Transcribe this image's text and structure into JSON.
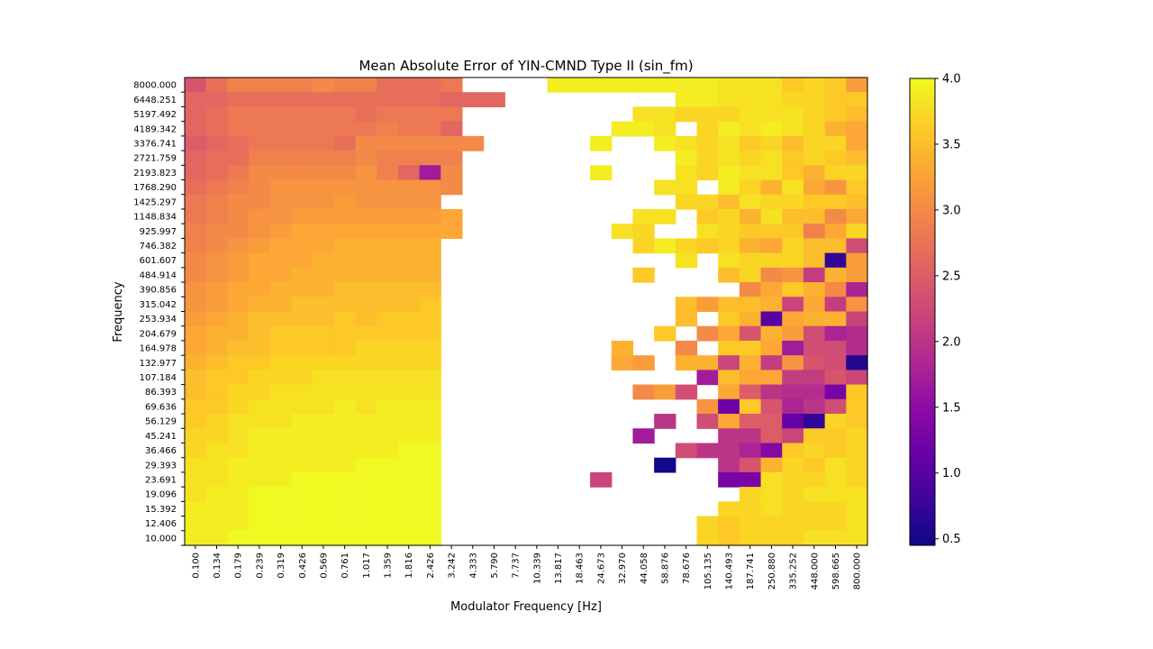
{
  "chart_data": {
    "type": "heatmap",
    "title": "Mean Absolute Error of YIN-CMND Type II  (sin_fm)",
    "xlabel": "Modulator Frequency [Hz]",
    "ylabel": "Frequency",
    "x_ticks": [
      "0.100",
      "0.134",
      "0.179",
      "0.239",
      "0.319",
      "0.426",
      "0.569",
      "0.761",
      "1.017",
      "1.359",
      "1.816",
      "2.426",
      "3.242",
      "4.333",
      "5.790",
      "7.737",
      "10.339",
      "13.817",
      "18.463",
      "24.673",
      "32.970",
      "44.058",
      "58.876",
      "78.676",
      "105.135",
      "140.493",
      "187.741",
      "250.880",
      "335.252",
      "448.000",
      "598.665",
      "800.000"
    ],
    "y_ticks": [
      "10.000",
      "12.406",
      "15.392",
      "19.096",
      "23.691",
      "29.393",
      "36.466",
      "45.241",
      "56.129",
      "69.636",
      "86.393",
      "107.184",
      "132.977",
      "164.978",
      "204.679",
      "253.934",
      "315.042",
      "390.856",
      "484.914",
      "601.607",
      "746.382",
      "925.997",
      "1148.834",
      "1425.297",
      "1768.290",
      "2193.823",
      "2721.759",
      "3376.741",
      "4189.342",
      "5197.492",
      "6448.251",
      "8000.000"
    ],
    "colormap": "plasma",
    "value_range": [
      0.45,
      4.0
    ],
    "colorbar_ticks": [
      "0.5",
      "1.0",
      "1.5",
      "2.0",
      "2.5",
      "3.0",
      "3.5",
      "4.0"
    ],
    "missing_value_note": "null = no data (white cell)",
    "grid_columns": 32,
    "grid_rows": 32,
    "rows_top_to_bottom": [
      [
        2.4,
        2.7,
        2.9,
        2.9,
        2.9,
        2.9,
        3.0,
        2.9,
        2.9,
        2.7,
        2.7,
        2.7,
        2.8,
        null,
        null,
        null,
        null,
        3.9,
        3.9,
        3.9,
        3.9,
        3.9,
        3.9,
        3.9,
        3.9,
        3.8,
        3.8,
        3.8,
        3.6,
        3.7,
        3.6,
        3.2
      ],
      [
        2.6,
        2.6,
        2.7,
        2.7,
        2.7,
        2.7,
        2.7,
        2.7,
        2.7,
        2.7,
        2.7,
        2.7,
        2.6,
        2.6,
        2.6,
        null,
        null,
        null,
        null,
        null,
        null,
        null,
        null,
        3.9,
        3.9,
        3.8,
        3.8,
        3.8,
        3.7,
        3.7,
        3.6,
        3.6
      ],
      [
        2.6,
        2.7,
        2.8,
        2.8,
        2.8,
        2.8,
        2.8,
        2.8,
        2.7,
        2.8,
        2.8,
        2.8,
        2.8,
        null,
        null,
        null,
        null,
        null,
        null,
        null,
        null,
        3.8,
        3.8,
        3.7,
        3.7,
        3.7,
        3.8,
        3.8,
        3.8,
        3.7,
        3.6,
        3.5
      ],
      [
        2.6,
        2.7,
        2.8,
        2.8,
        2.8,
        2.8,
        2.8,
        2.8,
        2.8,
        2.9,
        2.8,
        2.8,
        2.6,
        null,
        null,
        null,
        null,
        null,
        null,
        null,
        3.9,
        3.9,
        3.8,
        null,
        3.7,
        3.9,
        3.8,
        3.9,
        3.8,
        3.7,
        3.4,
        3.3
      ],
      [
        2.5,
        2.6,
        2.7,
        2.8,
        2.8,
        2.8,
        2.8,
        2.7,
        3.0,
        3.0,
        3.0,
        3.0,
        3.0,
        3.0,
        null,
        null,
        null,
        null,
        null,
        3.9,
        null,
        null,
        3.9,
        3.8,
        3.7,
        3.8,
        3.6,
        3.7,
        3.5,
        3.7,
        3.7,
        3.3
      ],
      [
        2.6,
        2.7,
        2.7,
        2.9,
        2.9,
        2.9,
        2.9,
        2.9,
        3.0,
        2.9,
        2.9,
        2.9,
        2.9,
        null,
        null,
        null,
        null,
        null,
        null,
        null,
        null,
        null,
        null,
        3.9,
        3.7,
        3.8,
        3.7,
        3.8,
        3.6,
        3.7,
        3.6,
        3.5
      ],
      [
        2.6,
        2.7,
        2.8,
        3.0,
        3.0,
        3.0,
        3.0,
        3.0,
        3.1,
        2.9,
        2.6,
        1.7,
        3.0,
        null,
        null,
        null,
        null,
        null,
        null,
        3.9,
        null,
        null,
        null,
        3.8,
        3.7,
        3.9,
        3.8,
        3.8,
        3.6,
        3.4,
        3.7,
        3.7
      ],
      [
        2.7,
        2.8,
        2.9,
        3.0,
        3.1,
        3.1,
        3.1,
        3.1,
        3.1,
        3.1,
        3.1,
        3.1,
        3.0,
        null,
        null,
        null,
        null,
        null,
        null,
        null,
        null,
        null,
        3.8,
        3.8,
        null,
        3.9,
        3.7,
        3.4,
        3.8,
        3.3,
        3.1,
        3.6
      ],
      [
        2.8,
        2.9,
        3.0,
        3.0,
        3.1,
        3.1,
        3.1,
        3.2,
        3.1,
        3.1,
        3.1,
        3.1,
        null,
        null,
        null,
        null,
        null,
        null,
        null,
        null,
        null,
        null,
        null,
        3.7,
        3.7,
        3.5,
        3.8,
        3.7,
        3.7,
        3.6,
        3.6,
        3.5
      ],
      [
        2.8,
        2.9,
        3.0,
        3.1,
        3.1,
        3.2,
        3.2,
        3.2,
        3.2,
        3.2,
        3.2,
        3.2,
        3.3,
        null,
        null,
        null,
        null,
        null,
        null,
        null,
        null,
        3.8,
        3.8,
        null,
        3.6,
        3.7,
        3.4,
        3.8,
        3.5,
        3.5,
        3.0,
        3.3
      ],
      [
        2.9,
        3.0,
        3.0,
        3.1,
        3.2,
        3.3,
        3.3,
        3.3,
        3.3,
        3.3,
        3.3,
        3.3,
        3.3,
        null,
        null,
        null,
        null,
        null,
        null,
        null,
        3.8,
        3.7,
        null,
        null,
        3.8,
        3.7,
        3.6,
        3.6,
        3.6,
        2.9,
        3.3,
        3.7
      ],
      [
        2.9,
        3.0,
        3.1,
        3.2,
        3.3,
        3.3,
        3.3,
        3.4,
        3.4,
        3.4,
        3.4,
        3.4,
        null,
        null,
        null,
        null,
        null,
        null,
        null,
        null,
        null,
        3.7,
        3.9,
        3.7,
        3.6,
        3.7,
        3.4,
        3.3,
        3.7,
        3.5,
        3.5,
        2.3
      ],
      [
        3.0,
        3.1,
        3.2,
        3.3,
        3.3,
        3.3,
        3.4,
        3.4,
        3.4,
        3.4,
        3.4,
        3.4,
        null,
        null,
        null,
        null,
        null,
        null,
        null,
        null,
        null,
        null,
        null,
        3.8,
        null,
        3.8,
        3.7,
        3.7,
        3.7,
        3.5,
        0.7,
        3.2
      ],
      [
        3.0,
        3.1,
        3.2,
        3.3,
        3.3,
        3.4,
        3.4,
        3.4,
        3.4,
        3.4,
        3.4,
        3.4,
        null,
        null,
        null,
        null,
        null,
        null,
        null,
        null,
        null,
        3.6,
        null,
        null,
        null,
        3.5,
        3.7,
        3.0,
        3.1,
        2.1,
        3.4,
        3.2
      ],
      [
        3.1,
        3.2,
        3.3,
        3.3,
        3.4,
        3.4,
        3.4,
        3.5,
        3.5,
        3.5,
        3.5,
        3.5,
        null,
        null,
        null,
        null,
        null,
        null,
        null,
        null,
        null,
        null,
        null,
        null,
        null,
        null,
        3.0,
        3.3,
        3.6,
        3.4,
        3.0,
        1.8
      ],
      [
        3.1,
        3.2,
        3.3,
        3.4,
        3.4,
        3.5,
        3.5,
        3.5,
        3.5,
        3.5,
        3.5,
        3.6,
        null,
        null,
        null,
        null,
        null,
        null,
        null,
        null,
        null,
        null,
        null,
        3.5,
        3.2,
        3.5,
        3.5,
        3.4,
        2.2,
        3.3,
        2.1,
        3.1
      ],
      [
        3.2,
        3.3,
        3.4,
        3.5,
        3.5,
        3.5,
        3.5,
        3.6,
        3.5,
        3.6,
        3.6,
        3.6,
        null,
        null,
        null,
        null,
        null,
        null,
        null,
        null,
        null,
        null,
        null,
        3.5,
        null,
        3.6,
        3.4,
        1.0,
        3.3,
        3.4,
        3.4,
        2.2
      ],
      [
        3.3,
        3.4,
        3.4,
        3.5,
        3.6,
        3.6,
        3.6,
        3.6,
        3.6,
        3.6,
        3.6,
        3.6,
        null,
        null,
        null,
        null,
        null,
        null,
        null,
        null,
        null,
        null,
        3.6,
        null,
        3.0,
        3.3,
        2.4,
        3.4,
        3.2,
        2.3,
        1.8,
        1.9
      ],
      [
        3.3,
        3.4,
        3.5,
        3.5,
        3.6,
        3.6,
        3.6,
        3.6,
        3.7,
        3.7,
        3.7,
        3.7,
        null,
        null,
        null,
        null,
        null,
        null,
        null,
        null,
        3.4,
        null,
        null,
        3.0,
        null,
        3.6,
        3.6,
        3.3,
        1.7,
        2.3,
        2.3,
        1.9
      ],
      [
        3.4,
        3.5,
        3.6,
        3.6,
        3.7,
        3.7,
        3.7,
        3.7,
        3.7,
        3.7,
        3.7,
        3.7,
        null,
        null,
        null,
        null,
        null,
        null,
        null,
        null,
        3.3,
        3.2,
        null,
        3.4,
        3.4,
        2.2,
        3.4,
        2.1,
        3.1,
        2.4,
        2.3,
        0.6
      ],
      [
        3.5,
        3.6,
        3.6,
        3.7,
        3.7,
        3.7,
        3.8,
        3.8,
        3.8,
        3.8,
        3.8,
        3.8,
        null,
        null,
        null,
        null,
        null,
        null,
        null,
        null,
        null,
        null,
        null,
        null,
        1.7,
        3.5,
        3.3,
        3.3,
        2.1,
        2.1,
        2.4,
        2.2
      ],
      [
        3.5,
        3.6,
        3.7,
        3.7,
        3.8,
        3.8,
        3.8,
        3.8,
        3.8,
        3.8,
        3.8,
        3.8,
        null,
        null,
        null,
        null,
        null,
        null,
        null,
        null,
        null,
        3.0,
        3.2,
        2.3,
        null,
        3.3,
        2.5,
        2.0,
        1.9,
        1.9,
        1.3,
        3.6
      ],
      [
        3.6,
        3.6,
        3.7,
        3.8,
        3.8,
        3.8,
        3.8,
        3.9,
        3.8,
        3.9,
        3.9,
        3.9,
        null,
        null,
        null,
        null,
        null,
        null,
        null,
        null,
        null,
        null,
        null,
        null,
        3.1,
        1.2,
        3.6,
        2.4,
        1.8,
        2.0,
        2.3,
        3.6
      ],
      [
        3.6,
        3.7,
        3.8,
        3.8,
        3.8,
        3.9,
        3.9,
        3.9,
        3.9,
        3.9,
        3.9,
        3.9,
        null,
        null,
        null,
        null,
        null,
        null,
        null,
        null,
        null,
        null,
        2.0,
        null,
        2.3,
        3.3,
        2.5,
        2.5,
        1.1,
        0.7,
        3.7,
        3.6
      ],
      [
        3.7,
        3.7,
        3.8,
        3.9,
        3.9,
        3.9,
        3.9,
        3.9,
        3.9,
        3.9,
        3.9,
        3.9,
        null,
        null,
        null,
        null,
        null,
        null,
        null,
        null,
        null,
        1.7,
        null,
        null,
        null,
        2.0,
        2.0,
        2.5,
        2.2,
        3.6,
        3.6,
        3.7
      ],
      [
        3.7,
        3.8,
        3.8,
        3.9,
        3.9,
        3.9,
        3.9,
        3.9,
        3.9,
        3.9,
        4.0,
        4.0,
        null,
        null,
        null,
        null,
        null,
        null,
        null,
        null,
        null,
        null,
        null,
        2.3,
        2.0,
        2.0,
        1.8,
        1.4,
        3.6,
        3.7,
        3.6,
        3.7
      ],
      [
        3.8,
        3.8,
        3.9,
        3.9,
        3.9,
        3.9,
        3.9,
        3.9,
        4.0,
        4.0,
        4.0,
        4.0,
        null,
        null,
        null,
        null,
        null,
        null,
        null,
        null,
        null,
        null,
        0.5,
        null,
        null,
        2.0,
        2.4,
        3.4,
        3.7,
        3.6,
        3.8,
        3.7
      ],
      [
        3.8,
        3.8,
        3.9,
        3.9,
        3.9,
        4.0,
        4.0,
        4.0,
        4.0,
        4.0,
        4.0,
        4.0,
        null,
        null,
        null,
        null,
        null,
        null,
        null,
        2.2,
        null,
        null,
        null,
        null,
        null,
        1.3,
        1.3,
        3.8,
        3.7,
        3.7,
        3.8,
        3.7
      ],
      [
        3.8,
        3.9,
        3.9,
        4.0,
        4.0,
        4.0,
        4.0,
        4.0,
        4.0,
        4.0,
        4.0,
        4.0,
        null,
        null,
        null,
        null,
        null,
        null,
        null,
        null,
        null,
        null,
        null,
        null,
        null,
        null,
        3.7,
        3.8,
        3.7,
        3.8,
        3.8,
        3.8
      ],
      [
        3.9,
        3.9,
        3.9,
        4.0,
        4.0,
        4.0,
        4.0,
        4.0,
        4.0,
        4.0,
        4.0,
        4.0,
        null,
        null,
        null,
        null,
        null,
        null,
        null,
        null,
        null,
        null,
        null,
        null,
        null,
        3.7,
        3.7,
        3.8,
        3.7,
        3.7,
        3.7,
        3.8
      ],
      [
        3.9,
        3.9,
        3.9,
        4.0,
        4.0,
        4.0,
        4.0,
        4.0,
        4.0,
        4.0,
        4.0,
        4.0,
        null,
        null,
        null,
        null,
        null,
        null,
        null,
        null,
        null,
        null,
        null,
        null,
        3.7,
        3.6,
        3.7,
        3.7,
        3.7,
        3.7,
        3.7,
        3.8
      ],
      [
        3.9,
        3.9,
        4.0,
        4.0,
        4.0,
        4.0,
        4.0,
        4.0,
        4.0,
        4.0,
        4.0,
        4.0,
        null,
        null,
        null,
        null,
        null,
        null,
        null,
        null,
        null,
        null,
        null,
        null,
        3.7,
        3.6,
        3.7,
        3.7,
        3.7,
        3.8,
        3.8,
        3.8
      ]
    ]
  }
}
